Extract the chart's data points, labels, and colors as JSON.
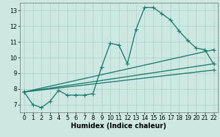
{
  "title": "",
  "xlabel": "Humidex (Indice chaleur)",
  "ylabel": "",
  "xlim": [
    -0.5,
    22.5
  ],
  "ylim": [
    6.5,
    13.5
  ],
  "xticks": [
    0,
    1,
    2,
    3,
    4,
    5,
    6,
    7,
    8,
    9,
    10,
    11,
    12,
    13,
    14,
    15,
    16,
    17,
    18,
    19,
    20,
    21,
    22
  ],
  "yticks": [
    7,
    8,
    9,
    10,
    11,
    12,
    13
  ],
  "bg_color": "#cde8e2",
  "line_color": "#1a7a6e",
  "grid_color": "#aed4cc",
  "lines": [
    {
      "x": [
        0,
        1,
        2,
        3,
        4,
        5,
        6,
        7,
        8,
        9,
        10,
        11,
        12,
        13,
        14,
        15,
        16,
        17,
        18,
        19,
        20,
        21,
        22
      ],
      "y": [
        7.8,
        7.0,
        6.8,
        7.2,
        7.9,
        7.6,
        7.6,
        7.6,
        7.7,
        9.4,
        10.9,
        10.8,
        9.6,
        11.8,
        13.2,
        13.2,
        12.8,
        12.4,
        11.7,
        11.1,
        10.6,
        10.5,
        9.6
      ]
    },
    {
      "x": [
        0,
        22
      ],
      "y": [
        7.8,
        9.6
      ]
    },
    {
      "x": [
        0,
        22
      ],
      "y": [
        7.8,
        10.5
      ]
    },
    {
      "x": [
        0,
        22
      ],
      "y": [
        7.8,
        9.2
      ]
    }
  ],
  "marker": "+",
  "markersize": 4,
  "linewidth": 1.0,
  "tick_fontsize": 6,
  "xlabel_fontsize": 7
}
